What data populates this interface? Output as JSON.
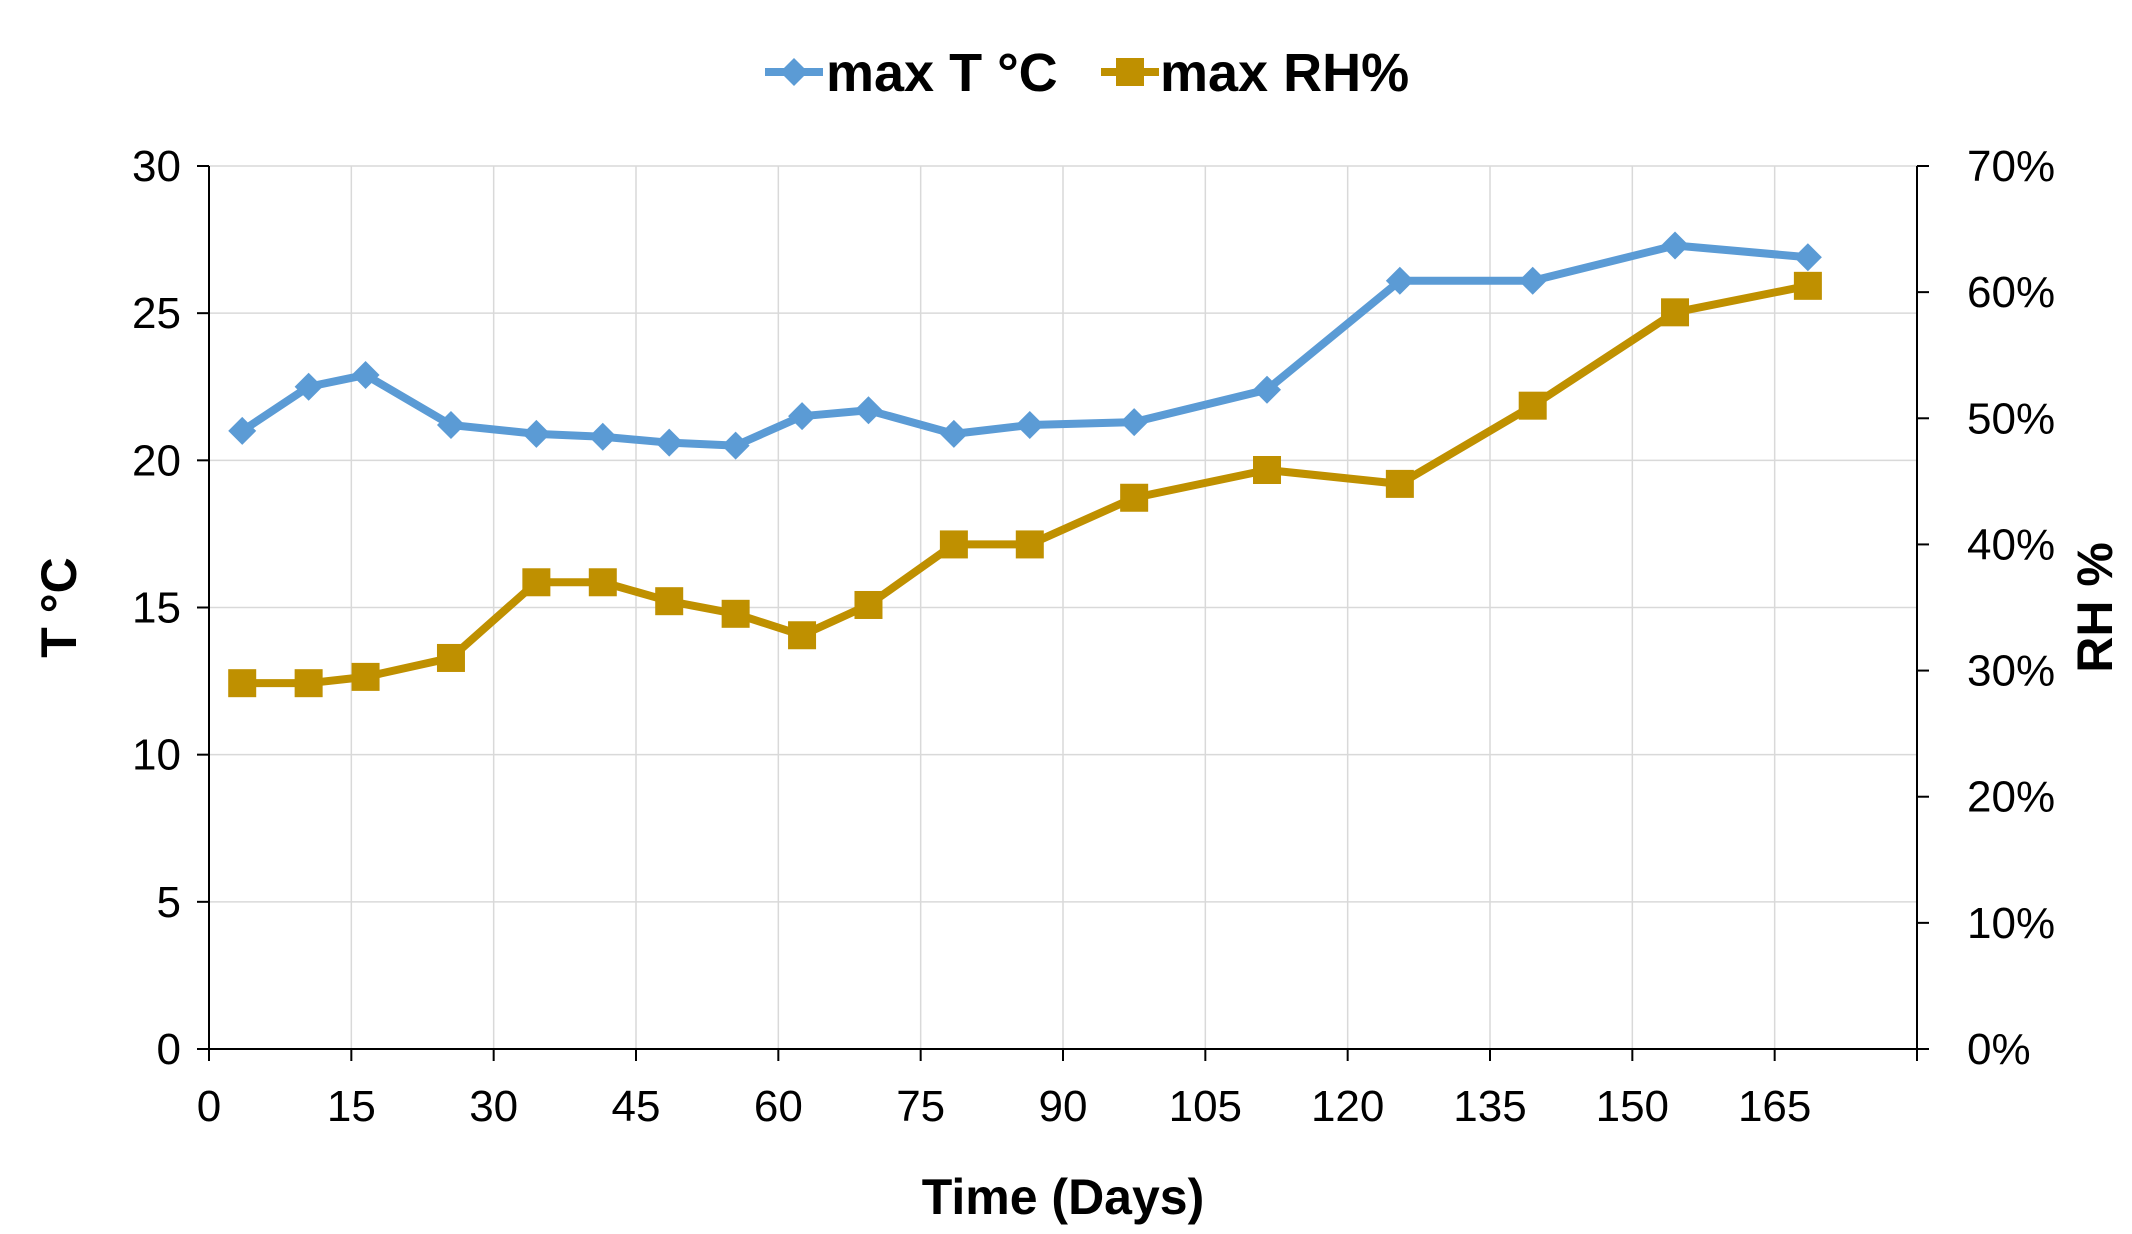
{
  "chart_data": {
    "type": "line",
    "title": "",
    "xlabel": "Time (Days)",
    "ylabel": "T °C",
    "y2label": "RH %",
    "xlim": [
      0,
      180
    ],
    "ylim": [
      0,
      30
    ],
    "y2lim": [
      0,
      0.7
    ],
    "xticks": [
      0,
      15,
      30,
      45,
      60,
      75,
      90,
      105,
      120,
      135,
      150,
      165
    ],
    "yticks": [
      0,
      5,
      10,
      15,
      20,
      25,
      30
    ],
    "y2ticks": [
      0,
      0.1,
      0.2,
      0.3,
      0.4,
      0.5,
      0.6,
      0.7
    ],
    "y2tick_labels": [
      "0%",
      "10%",
      "20%",
      "30%",
      "40%",
      "50%",
      "60%",
      "70%"
    ],
    "grid": true,
    "legend_position": "top-center",
    "series": [
      {
        "name": "max T °C",
        "axis": "left",
        "color": "#5b9bd5",
        "marker": "diamond",
        "x": [
          3.5,
          10.5,
          16.5,
          25.5,
          34.5,
          41.5,
          48.5,
          55.5,
          62.5,
          69.5,
          78.5,
          86.5,
          97.5,
          111.5,
          125.5,
          139.5,
          154.5,
          168.5
        ],
        "values": [
          21.0,
          22.5,
          22.9,
          21.2,
          20.9,
          20.8,
          20.6,
          20.5,
          21.5,
          21.7,
          20.9,
          21.2,
          21.3,
          22.4,
          26.1,
          26.1,
          27.3,
          26.9
        ]
      },
      {
        "name": "max RH%",
        "axis": "right",
        "color": "#bf9000",
        "marker": "square",
        "x": [
          3.5,
          10.5,
          16.5,
          25.5,
          34.5,
          41.5,
          48.5,
          55.5,
          62.5,
          69.5,
          78.5,
          86.5,
          97.5,
          111.5,
          125.5,
          139.5,
          154.5,
          168.5
        ],
        "values": [
          0.29,
          0.29,
          0.295,
          0.31,
          0.37,
          0.37,
          0.355,
          0.345,
          0.328,
          0.352,
          0.4,
          0.4,
          0.437,
          0.459,
          0.448,
          0.51,
          0.584,
          0.605
        ]
      }
    ]
  }
}
